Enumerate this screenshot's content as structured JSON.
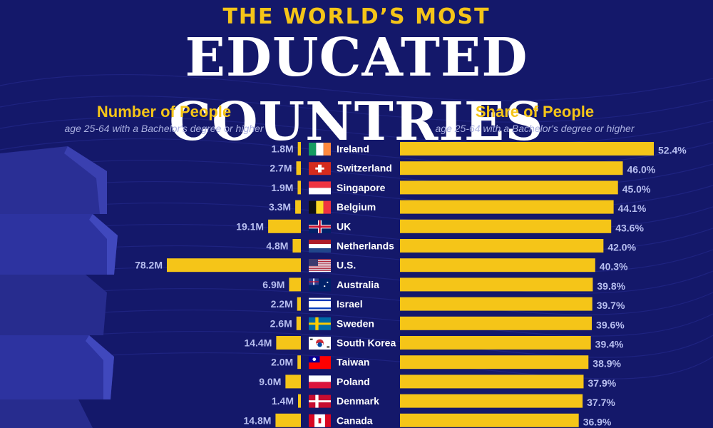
{
  "header": {
    "kicker": "THE WORLD’S MOST",
    "title": "EDUCATED COUNTRIES"
  },
  "columns": {
    "left_title": "Number of People",
    "left_subtitle": "age 25-64 with a Bachelor's degree or higher",
    "right_title": "Share of People",
    "right_subtitle": "age 25-64 with a Bachelor's degree or higher"
  },
  "colors": {
    "background": "#14186a",
    "bar": "#f5c518",
    "accent_text": "#f5c518",
    "value_label": "#b8bff0"
  },
  "chart_data": {
    "type": "bar",
    "categories": [
      "Ireland",
      "Switzerland",
      "Singapore",
      "Belgium",
      "UK",
      "Netherlands",
      "U.S.",
      "Australia",
      "Israel",
      "Sweden",
      "South Korea",
      "Taiwan",
      "Poland",
      "Denmark",
      "Canada"
    ],
    "flags": [
      "flag-ireland",
      "flag-switzerland",
      "flag-singapore",
      "flag-belgium",
      "flag-uk",
      "flag-netherlands",
      "flag-us",
      "flag-australia",
      "flag-israel",
      "flag-sweden",
      "flag-south-korea",
      "flag-taiwan",
      "flag-poland",
      "flag-denmark",
      "flag-canada"
    ],
    "series": [
      {
        "name": "Number of People",
        "unit": "M",
        "values": [
          1.8,
          2.7,
          1.9,
          3.3,
          19.1,
          4.8,
          78.2,
          6.9,
          2.2,
          2.6,
          14.4,
          2.0,
          9.0,
          1.4,
          14.8
        ],
        "labels": [
          "1.8M",
          "2.7M",
          "1.9M",
          "3.3M",
          "19.1M",
          "4.8M",
          "78.2M",
          "6.9M",
          "2.2M",
          "2.6M",
          "14.4M",
          "2.0M",
          "9.0M",
          "1.4M",
          "14.8M"
        ]
      },
      {
        "name": "Share of People",
        "unit": "%",
        "values": [
          52.4,
          46.0,
          45.0,
          44.1,
          43.6,
          42.0,
          40.3,
          39.8,
          39.7,
          39.6,
          39.4,
          38.9,
          37.9,
          37.7,
          36.9
        ],
        "labels": [
          "52.4%",
          "46.0%",
          "45.0%",
          "44.1%",
          "43.6%",
          "42.0%",
          "40.3%",
          "39.8%",
          "39.7%",
          "39.6%",
          "39.4%",
          "38.9%",
          "37.9%",
          "37.7%",
          "36.9%"
        ]
      }
    ],
    "orientation": "horizontal",
    "left_series_direction": "right-to-left",
    "grid": false
  }
}
